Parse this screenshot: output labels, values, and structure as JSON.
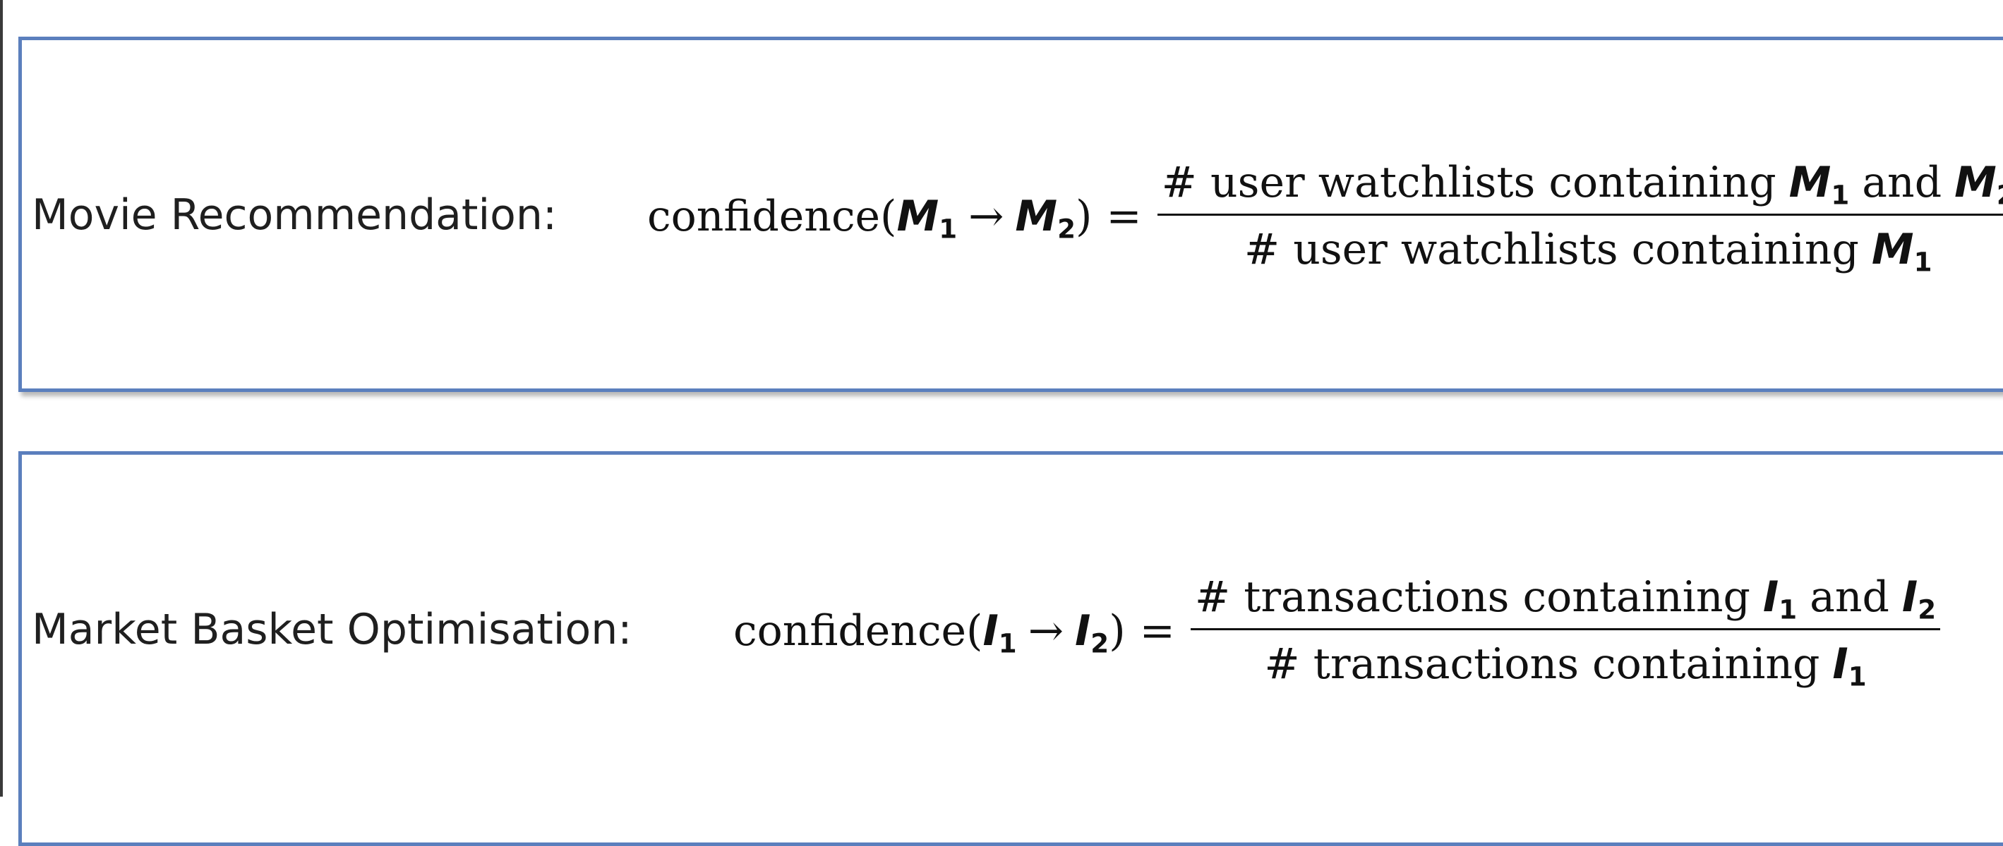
{
  "rows": [
    {
      "label": "Movie Recommendation:",
      "func": "confidence(",
      "var1": "M",
      "sub1": "1",
      "arrow": "→",
      "var2": "M",
      "sub2": "2",
      "close": ")",
      "equals": "=",
      "numerator_text": "# user watchlists containing",
      "and_text": "and",
      "denominator_text": "# user watchlists containing"
    },
    {
      "label": "Market Basket Optimisation:",
      "func": "confidence(",
      "var1": "I",
      "sub1": "1",
      "arrow": "→",
      "var2": "I",
      "sub2": "2",
      "close": ")",
      "equals": "=",
      "numerator_text": "# transactions containing",
      "and_text": "and",
      "denominator_text": "# transactions containing"
    }
  ],
  "colors": {
    "box_border": "#5b7fbd",
    "text": "#111111",
    "background": "#ffffff"
  }
}
